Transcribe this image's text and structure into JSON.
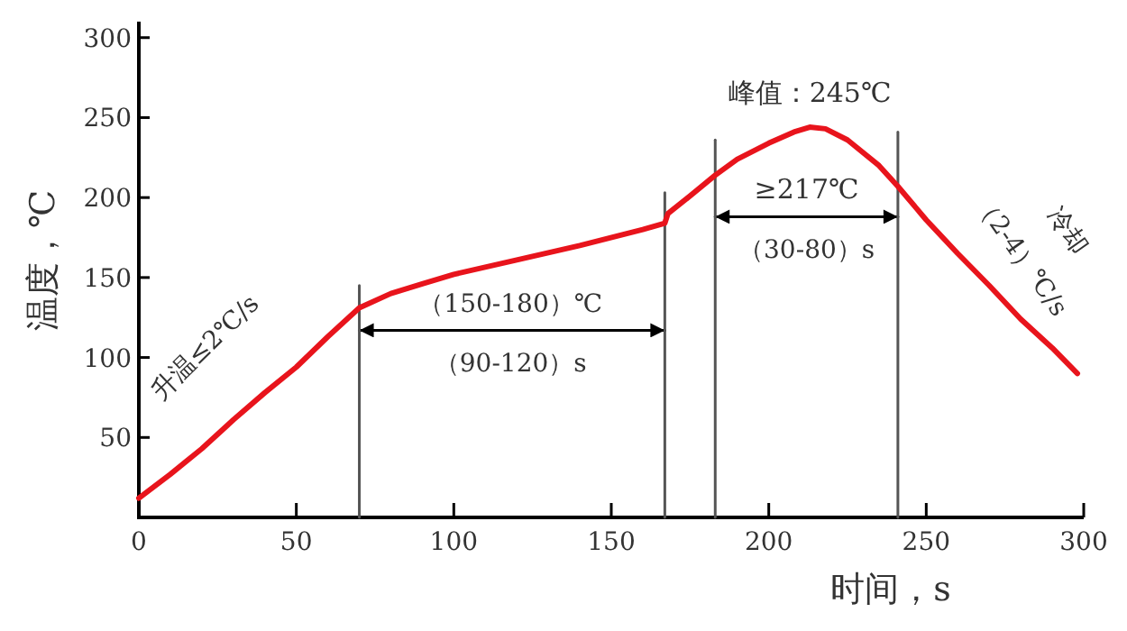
{
  "chart_data": {
    "type": "line",
    "xlabel": "时间，s",
    "ylabel": "温度，℃",
    "xlim": [
      0,
      300
    ],
    "xticks": [
      0,
      50,
      100,
      150,
      200,
      250,
      300
    ],
    "ylim": [
      0,
      310
    ],
    "yticks": [
      {
        "value": 0,
        "label": null
      },
      50,
      100,
      150,
      200,
      250,
      300
    ],
    "grid": false,
    "series": [
      {
        "color": "#e8141c",
        "x": [
          0,
          10,
          20,
          30,
          40,
          50,
          60,
          70,
          80,
          90,
          100,
          120,
          140,
          160,
          167,
          168,
          175,
          183,
          190,
          200,
          208,
          213,
          218,
          225,
          235,
          241,
          250,
          260,
          270,
          280,
          290,
          298
        ],
        "values": [
          12,
          27,
          43,
          61,
          78,
          94,
          113,
          131,
          140,
          146,
          152,
          161,
          170,
          180,
          184,
          190,
          201,
          214,
          224,
          234,
          241,
          244,
          243,
          236,
          220,
          207,
          186,
          165,
          145,
          124,
          106,
          90
        ]
      },
      {
        "color": "#555555",
        "x": [
          70,
          70
        ],
        "values": [
          0,
          145
        ]
      },
      {
        "color": "#555555",
        "x": [
          167,
          167
        ],
        "values": [
          0,
          203
        ]
      },
      {
        "color": "#555555",
        "x": [
          183,
          183
        ],
        "values": [
          0,
          236
        ]
      },
      {
        "color": "#555555",
        "x": [
          241,
          241
        ],
        "values": [
          0,
          241
        ]
      },
      {
        "color": "#000000",
        "x": [
          70,
          167
        ],
        "values": [
          117,
          117
        ]
      },
      {
        "color": "#000000",
        "x": [
          183,
          241
        ],
        "values": [
          188,
          188
        ]
      }
    ],
    "annotations": [
      {
        "text": "升温≤2℃/s",
        "x": 40,
        "y": 78
      },
      {
        "text": "（150-180）℃",
        "x": 118,
        "y": 117
      },
      {
        "text": "（90-120）s",
        "x": 118,
        "y": 117
      },
      {
        "text": "峰值：245℃",
        "x": 213,
        "y": 244
      },
      {
        "text": "≥217℃",
        "x": 212,
        "y": 188
      },
      {
        "text": "（30-80）s",
        "x": 212,
        "y": 188
      },
      {
        "text": "冷却",
        "x": 270,
        "y": 145
      },
      {
        "text": "（2-4）℃/s",
        "x": 270,
        "y": 145
      }
    ]
  }
}
